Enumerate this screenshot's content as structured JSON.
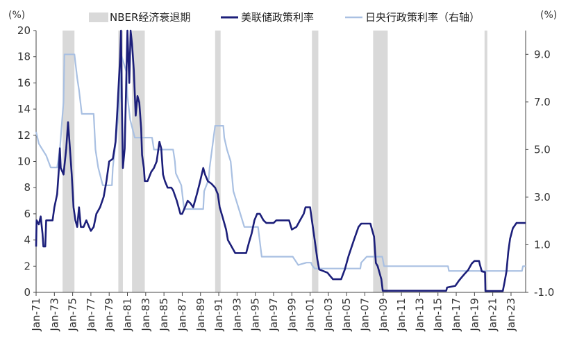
{
  "chart_data": {
    "type": "line",
    "left_unit": "(%)",
    "right_unit": "(%)",
    "ylim_left": [
      0,
      20
    ],
    "ylim_right": [
      -1,
      10
    ],
    "yticks_left": [
      "0",
      "2",
      "4",
      "6",
      "8",
      "10",
      "12",
      "14",
      "16",
      "18",
      "20"
    ],
    "yticks_right": [
      "-1.0",
      "1.0",
      "3.0",
      "5.0",
      "7.0",
      "9.0"
    ],
    "xlim": [
      1971,
      2024.6
    ],
    "x_ticks": [
      {
        "year": 1971,
        "label": "Jan-71"
      },
      {
        "year": 1973,
        "label": "Jan-73"
      },
      {
        "year": 1975,
        "label": "Jan-75"
      },
      {
        "year": 1977,
        "label": "Jan-77"
      },
      {
        "year": 1979,
        "label": "Jan-79"
      },
      {
        "year": 1981,
        "label": "Jan-81"
      },
      {
        "year": 1983,
        "label": "Jan-83"
      },
      {
        "year": 1985,
        "label": "Jan-85"
      },
      {
        "year": 1987,
        "label": "Jan-87"
      },
      {
        "year": 1989,
        "label": "Jan-89"
      },
      {
        "year": 1991,
        "label": "Jan-91"
      },
      {
        "year": 1993,
        "label": "Jan-93"
      },
      {
        "year": 1995,
        "label": "Jan-95"
      },
      {
        "year": 1997,
        "label": "Jan-97"
      },
      {
        "year": 1999,
        "label": "Jan-99"
      },
      {
        "year": 2001,
        "label": "Jan-01"
      },
      {
        "year": 2003,
        "label": "Jan-03"
      },
      {
        "year": 2005,
        "label": "Jan-05"
      },
      {
        "year": 2007,
        "label": "Jan-07"
      },
      {
        "year": 2009,
        "label": "Jan-09"
      },
      {
        "year": 2011,
        "label": "Jan-11"
      },
      {
        "year": 2013,
        "label": "Jan-13"
      },
      {
        "year": 2015,
        "label": "Jan-15"
      },
      {
        "year": 2017,
        "label": "Jan-17"
      },
      {
        "year": 2019,
        "label": "Jan-19"
      },
      {
        "year": 2021,
        "label": "Jan-21"
      },
      {
        "year": 2023,
        "label": "Jan-23"
      }
    ],
    "legend": {
      "recession": "NBER经济衰退期",
      "fed": "美联储政策利率",
      "boj": "日央行政策利率（右轴）"
    },
    "colors": {
      "fed": "#1c1f7a",
      "boj": "#a9c0e2",
      "recession": "#d9d9d9",
      "negative_tick": "#e0202a",
      "axis": "#444444"
    },
    "recessions": [
      [
        1973.9,
        1975.2
      ],
      [
        1980.0,
        1980.5
      ],
      [
        1981.5,
        1982.9
      ],
      [
        1990.6,
        1991.2
      ],
      [
        2001.2,
        2001.9
      ],
      [
        2007.9,
        2009.5
      ],
      [
        2020.1,
        2020.4
      ]
    ],
    "series": [
      {
        "name": "美联储政策利率",
        "axis": "left",
        "points": [
          [
            1971.0,
            3.5
          ],
          [
            1971.05,
            5.5
          ],
          [
            1971.3,
            5.2
          ],
          [
            1971.5,
            5.8
          ],
          [
            1971.7,
            4.5
          ],
          [
            1971.8,
            3.5
          ],
          [
            1972.0,
            3.5
          ],
          [
            1972.1,
            5.5
          ],
          [
            1972.8,
            5.5
          ],
          [
            1973.0,
            6.5
          ],
          [
            1973.3,
            7.5
          ],
          [
            1973.5,
            9.5
          ],
          [
            1973.6,
            11.0
          ],
          [
            1973.7,
            9.5
          ],
          [
            1974.0,
            9.0
          ],
          [
            1974.3,
            11.0
          ],
          [
            1974.5,
            13.0
          ],
          [
            1974.7,
            11.0
          ],
          [
            1974.9,
            9.0
          ],
          [
            1975.1,
            6.5
          ],
          [
            1975.3,
            5.5
          ],
          [
            1975.5,
            5.0
          ],
          [
            1975.7,
            6.5
          ],
          [
            1975.9,
            5.0
          ],
          [
            1976.2,
            5.0
          ],
          [
            1976.5,
            5.5
          ],
          [
            1976.8,
            5.0
          ],
          [
            1977.0,
            4.7
          ],
          [
            1977.3,
            5.0
          ],
          [
            1977.6,
            6.0
          ],
          [
            1978.0,
            6.5
          ],
          [
            1978.4,
            7.3
          ],
          [
            1978.7,
            8.5
          ],
          [
            1979.0,
            10.0
          ],
          [
            1979.4,
            10.2
          ],
          [
            1979.7,
            11.5
          ],
          [
            1979.9,
            14.0
          ],
          [
            1980.2,
            18.0
          ],
          [
            1980.3,
            20.0
          ],
          [
            1980.4,
            14.0
          ],
          [
            1980.5,
            9.5
          ],
          [
            1980.7,
            11.0
          ],
          [
            1980.9,
            17.0
          ],
          [
            1981.0,
            20.0
          ],
          [
            1981.2,
            16.0
          ],
          [
            1981.35,
            20.0
          ],
          [
            1981.5,
            19.0
          ],
          [
            1981.7,
            17.0
          ],
          [
            1981.9,
            13.5
          ],
          [
            1982.1,
            15.0
          ],
          [
            1982.3,
            14.5
          ],
          [
            1982.5,
            12.5
          ],
          [
            1982.6,
            10.5
          ],
          [
            1982.8,
            9.5
          ],
          [
            1982.9,
            8.5
          ],
          [
            1983.2,
            8.5
          ],
          [
            1983.6,
            9.2
          ],
          [
            1983.9,
            9.5
          ],
          [
            1984.2,
            10.0
          ],
          [
            1984.5,
            11.5
          ],
          [
            1984.7,
            11.0
          ],
          [
            1984.9,
            9.0
          ],
          [
            1985.1,
            8.5
          ],
          [
            1985.4,
            8.0
          ],
          [
            1985.8,
            8.0
          ],
          [
            1986.0,
            7.8
          ],
          [
            1986.4,
            7.0
          ],
          [
            1986.8,
            6.0
          ],
          [
            1987.0,
            6.0
          ],
          [
            1987.3,
            6.5
          ],
          [
            1987.6,
            7.0
          ],
          [
            1987.9,
            6.8
          ],
          [
            1988.2,
            6.5
          ],
          [
            1988.6,
            7.5
          ],
          [
            1988.9,
            8.3
          ],
          [
            1989.3,
            9.5
          ],
          [
            1989.5,
            9.0
          ],
          [
            1989.8,
            8.5
          ],
          [
            1990.2,
            8.3
          ],
          [
            1990.6,
            8.0
          ],
          [
            1990.9,
            7.5
          ],
          [
            1991.1,
            6.5
          ],
          [
            1991.4,
            5.8
          ],
          [
            1991.8,
            4.8
          ],
          [
            1992.0,
            4.0
          ],
          [
            1992.4,
            3.5
          ],
          [
            1992.8,
            3.0
          ],
          [
            1993.0,
            3.0
          ],
          [
            1993.6,
            3.0
          ],
          [
            1994.0,
            3.0
          ],
          [
            1994.3,
            3.8
          ],
          [
            1994.6,
            4.5
          ],
          [
            1994.9,
            5.5
          ],
          [
            1995.2,
            6.0
          ],
          [
            1995.5,
            6.0
          ],
          [
            1995.9,
            5.5
          ],
          [
            1996.2,
            5.3
          ],
          [
            1997.0,
            5.3
          ],
          [
            1997.3,
            5.5
          ],
          [
            1998.0,
            5.5
          ],
          [
            1998.7,
            5.5
          ],
          [
            1999.0,
            4.8
          ],
          [
            1999.5,
            5.0
          ],
          [
            1999.9,
            5.5
          ],
          [
            2000.3,
            6.0
          ],
          [
            2000.5,
            6.5
          ],
          [
            2001.0,
            6.5
          ],
          [
            2001.2,
            5.5
          ],
          [
            2001.5,
            4.0
          ],
          [
            2001.8,
            2.5
          ],
          [
            2002.0,
            1.75
          ],
          [
            2002.9,
            1.5
          ],
          [
            2003.2,
            1.25
          ],
          [
            2003.5,
            1.0
          ],
          [
            2004.4,
            1.0
          ],
          [
            2004.8,
            1.75
          ],
          [
            2005.2,
            2.75
          ],
          [
            2005.8,
            4.0
          ],
          [
            2006.3,
            5.0
          ],
          [
            2006.6,
            5.25
          ],
          [
            2007.6,
            5.25
          ],
          [
            2007.8,
            4.75
          ],
          [
            2008.0,
            4.25
          ],
          [
            2008.2,
            2.25
          ],
          [
            2008.4,
            2.0
          ],
          [
            2008.8,
            1.0
          ],
          [
            2008.95,
            0.12
          ],
          [
            2015.9,
            0.12
          ],
          [
            2016.0,
            0.37
          ],
          [
            2016.9,
            0.5
          ],
          [
            2017.3,
            0.9
          ],
          [
            2017.6,
            1.15
          ],
          [
            2017.9,
            1.4
          ],
          [
            2018.3,
            1.7
          ],
          [
            2018.7,
            2.2
          ],
          [
            2019.0,
            2.4
          ],
          [
            2019.5,
            2.4
          ],
          [
            2019.6,
            2.1
          ],
          [
            2019.8,
            1.6
          ],
          [
            2020.15,
            1.55
          ],
          [
            2020.2,
            0.1
          ],
          [
            2022.1,
            0.1
          ],
          [
            2022.3,
            0.8
          ],
          [
            2022.5,
            1.6
          ],
          [
            2022.7,
            3.1
          ],
          [
            2022.9,
            4.1
          ],
          [
            2023.2,
            4.9
          ],
          [
            2023.6,
            5.3
          ],
          [
            2024.6,
            5.3
          ]
        ]
      },
      {
        "name": "日央行政策利率（右轴）",
        "axis": "right",
        "points": [
          [
            1971.0,
            5.75
          ],
          [
            1971.3,
            5.25
          ],
          [
            1971.7,
            5.0
          ],
          [
            1972.1,
            4.75
          ],
          [
            1972.6,
            4.25
          ],
          [
            1973.3,
            4.25
          ],
          [
            1973.6,
            5.0
          ],
          [
            1973.8,
            6.0
          ],
          [
            1974.0,
            7.0
          ],
          [
            1974.1,
            9.0
          ],
          [
            1975.2,
            9.0
          ],
          [
            1975.5,
            8.0
          ],
          [
            1975.7,
            7.5
          ],
          [
            1976.0,
            6.5
          ],
          [
            1977.3,
            6.5
          ],
          [
            1977.5,
            5.0
          ],
          [
            1977.8,
            4.25
          ],
          [
            1978.3,
            3.5
          ],
          [
            1979.3,
            3.5
          ],
          [
            1979.4,
            4.25
          ],
          [
            1979.7,
            5.25
          ],
          [
            1980.2,
            7.25
          ],
          [
            1980.3,
            9.0
          ],
          [
            1980.9,
            8.25
          ],
          [
            1981.0,
            7.25
          ],
          [
            1981.3,
            6.25
          ],
          [
            1981.8,
            5.5
          ],
          [
            1983.7,
            5.5
          ],
          [
            1983.9,
            5.0
          ],
          [
            1986.0,
            5.0
          ],
          [
            1986.2,
            4.5
          ],
          [
            1986.3,
            4.0
          ],
          [
            1986.9,
            3.5
          ],
          [
            1987.2,
            2.5
          ],
          [
            1989.3,
            2.5
          ],
          [
            1989.4,
            3.25
          ],
          [
            1989.9,
            3.75
          ],
          [
            1990.0,
            4.25
          ],
          [
            1990.6,
            6.0
          ],
          [
            1991.5,
            6.0
          ],
          [
            1991.6,
            5.5
          ],
          [
            1991.9,
            5.0
          ],
          [
            1992.3,
            4.5
          ],
          [
            1992.6,
            3.25
          ],
          [
            1993.2,
            2.5
          ],
          [
            1993.8,
            1.75
          ],
          [
            1995.3,
            1.75
          ],
          [
            1995.7,
            0.5
          ],
          [
            1999.1,
            0.5
          ],
          [
            1999.7,
            0.15
          ],
          [
            2000.6,
            0.25
          ],
          [
            2001.1,
            0.25
          ],
          [
            2001.2,
            0.15
          ],
          [
            2001.5,
            0.0
          ],
          [
            2006.5,
            0.0
          ],
          [
            2006.6,
            0.25
          ],
          [
            2007.2,
            0.5
          ],
          [
            2008.9,
            0.5
          ],
          [
            2009.0,
            0.3
          ],
          [
            2009.1,
            0.1
          ],
          [
            2016.1,
            0.1
          ],
          [
            2016.2,
            -0.1
          ],
          [
            2024.2,
            -0.1
          ],
          [
            2024.3,
            0.1
          ],
          [
            2024.6,
            0.1
          ]
        ]
      }
    ]
  }
}
